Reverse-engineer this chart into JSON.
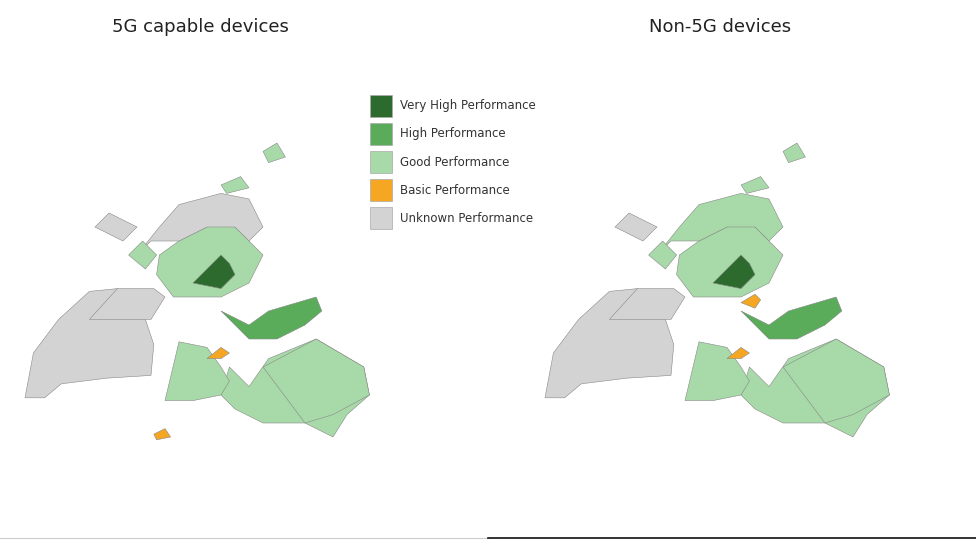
{
  "title_left": "5G capable devices",
  "title_right": "Non-5G devices",
  "title_fontsize": 13,
  "background_color": "#ffffff",
  "legend_labels": [
    "Very High Performance",
    "High Performance",
    "Good Performance",
    "Basic Performance",
    "Unknown Performance"
  ],
  "legend_colors": [
    "#2d6a2d",
    "#5aab5a",
    "#a8d9a8",
    "#f5a623",
    "#d3d3d3"
  ],
  "figsize": [
    9.76,
    5.49
  ],
  "dpi": 100
}
